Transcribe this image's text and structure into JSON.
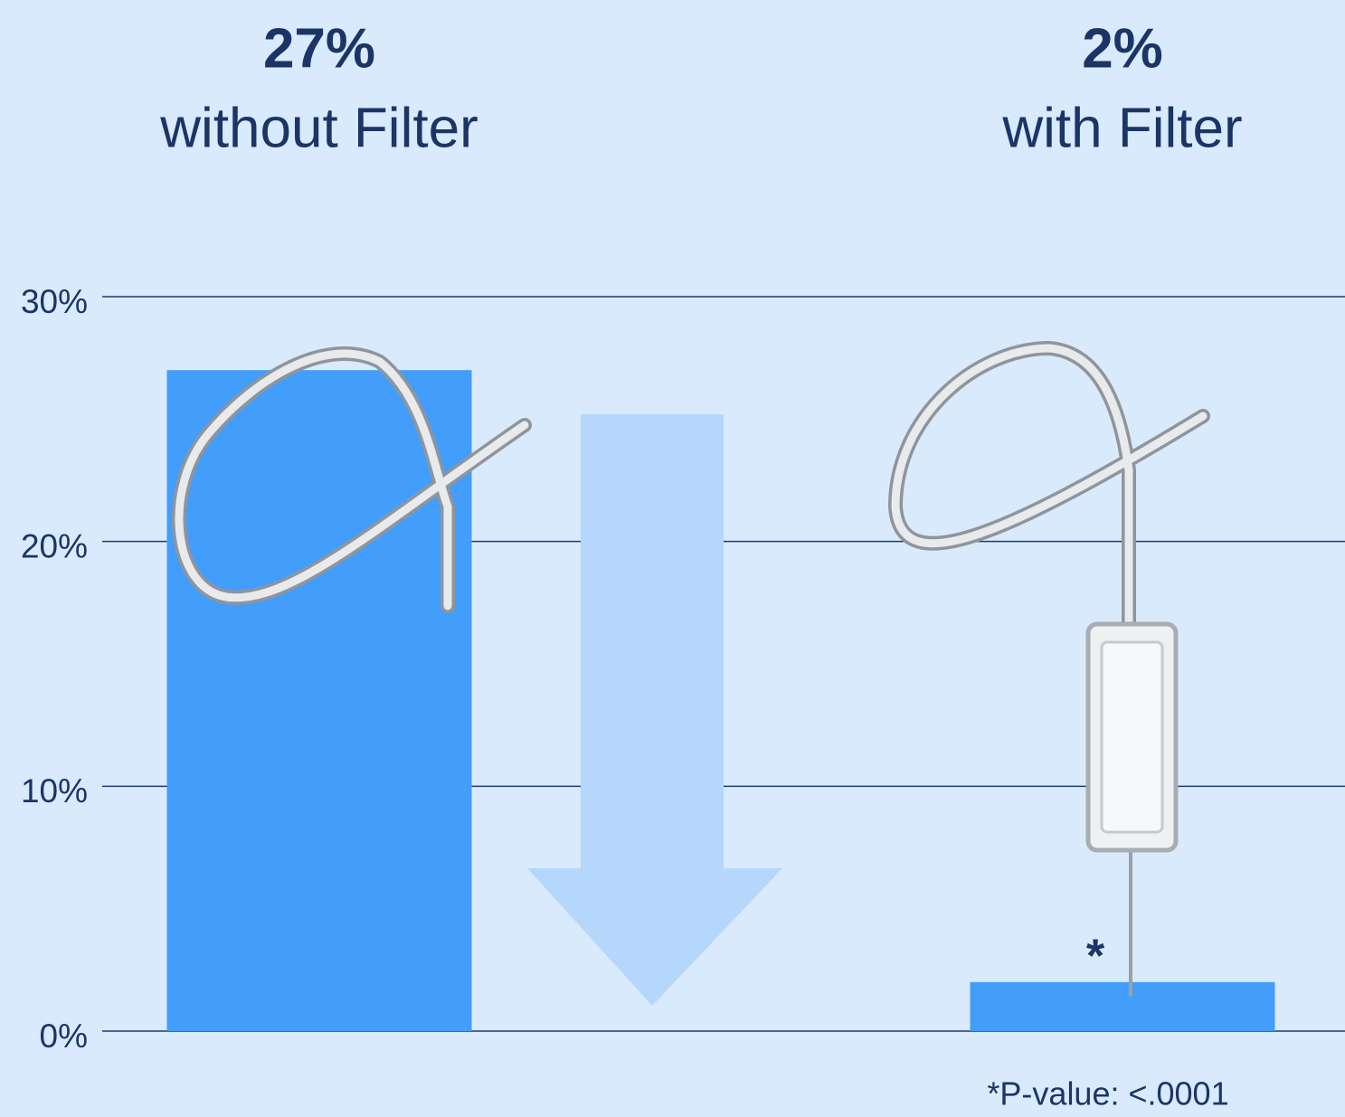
{
  "chart_data": {
    "type": "bar",
    "categories": [
      "without Filter",
      "with Filter"
    ],
    "values": [
      27,
      2
    ],
    "value_labels": [
      "27%",
      "2%"
    ],
    "color": "#439dfb",
    "ylim": [
      0,
      30
    ],
    "yticks": [
      {
        "value": 0,
        "label": "0%"
      },
      {
        "value": 10,
        "label": "10%"
      },
      {
        "value": 20,
        "label": "20%"
      },
      {
        "value": 30,
        "label": "30%"
      }
    ],
    "grid": true,
    "annotation": "*",
    "footnote": "*P-value: <.0001"
  }
}
